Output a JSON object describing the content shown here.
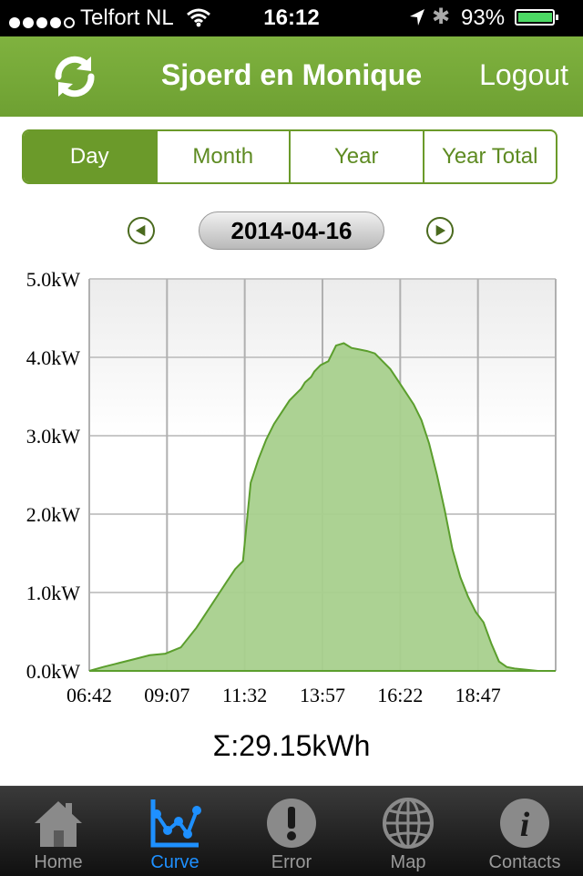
{
  "status_bar": {
    "carrier": "Telfort NL",
    "time": "16:12",
    "battery": "93%",
    "battery_level": 0.93
  },
  "nav": {
    "title": "Sjoerd en Monique",
    "logout_label": "Logout",
    "refresh_icon": "refresh-icon"
  },
  "tabs_period": [
    {
      "label": "Day",
      "active": true
    },
    {
      "label": "Month",
      "active": false
    },
    {
      "label": "Year",
      "active": false
    },
    {
      "label": "Year Total",
      "active": false
    }
  ],
  "date": "2014-04-16",
  "colors": {
    "brand": "#6b9a2a",
    "area_fill": "#a8d08d",
    "area_line": "#5b9e2d",
    "active_tab": "#1e90ff"
  },
  "chart_data": {
    "type": "area",
    "ylabels": [
      "0.0kW",
      "1.0kW",
      "2.0kW",
      "3.0kW",
      "4.0kW",
      "5.0kW"
    ],
    "xlabels": [
      "06:42",
      "09:07",
      "11:32",
      "13:57",
      "16:22",
      "18:47"
    ],
    "ylim": [
      0,
      5
    ],
    "xlim_minutes": [
      402,
      1003
    ],
    "grid": true,
    "series": [
      {
        "x": [
          402,
          420,
          440,
          460,
          480,
          500,
          520,
          540,
          550,
          560,
          570,
          580,
          590,
          600,
          610,
          620,
          630,
          640,
          650,
          660,
          670,
          675,
          680,
          688,
          692,
          695,
          700,
          710,
          720,
          730,
          740,
          750,
          760,
          770,
          780,
          790,
          800,
          810,
          820,
          830,
          840,
          850,
          860,
          870,
          880,
          890,
          900,
          910,
          920,
          930,
          940,
          950,
          960,
          970,
          980,
          990,
          1003
        ],
        "y": [
          0.0,
          0.05,
          0.1,
          0.15,
          0.2,
          0.22,
          0.3,
          0.55,
          0.7,
          0.85,
          1.0,
          1.15,
          1.3,
          1.4,
          2.4,
          2.7,
          2.95,
          3.15,
          3.3,
          3.45,
          3.55,
          3.6,
          3.68,
          3.75,
          3.82,
          3.85,
          3.9,
          3.95,
          4.15,
          4.18,
          4.12,
          4.1,
          4.08,
          4.05,
          3.95,
          3.85,
          3.7,
          3.55,
          3.4,
          3.2,
          2.9,
          2.5,
          2.05,
          1.55,
          1.2,
          0.95,
          0.75,
          0.62,
          0.35,
          0.12,
          0.05,
          0.03,
          0.02,
          0.01,
          0.0,
          0.0,
          0.0
        ]
      }
    ]
  },
  "total": "Σ:29.15kWh",
  "tab_bar": [
    {
      "label": "Home",
      "icon": "home-icon",
      "active": false
    },
    {
      "label": "Curve",
      "icon": "curve-icon",
      "active": true
    },
    {
      "label": "Error",
      "icon": "error-icon",
      "active": false
    },
    {
      "label": "Map",
      "icon": "globe-icon",
      "active": false
    },
    {
      "label": "Contacts",
      "icon": "info-icon",
      "active": false
    }
  ]
}
